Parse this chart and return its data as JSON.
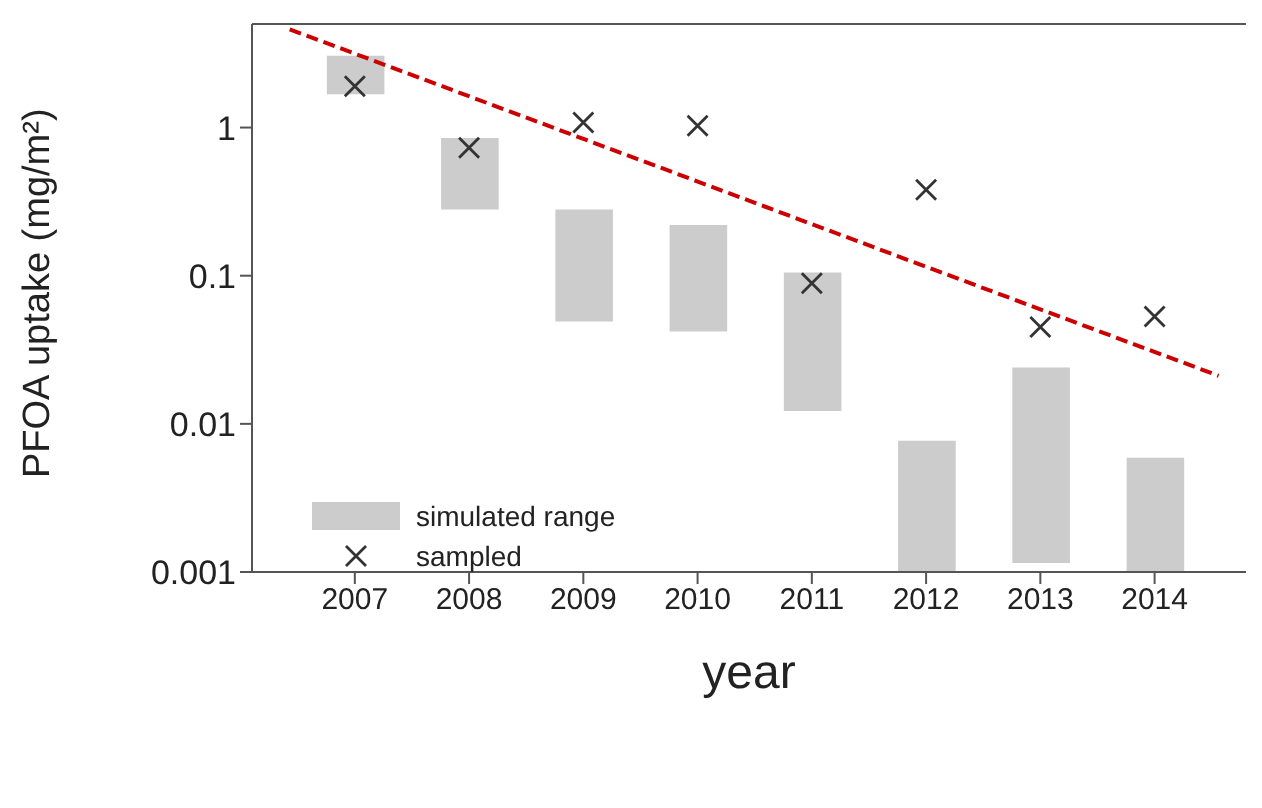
{
  "chart_data": {
    "type": "bar",
    "xlabel": "year",
    "ylabel": "PFOA uptake (mg/m²)",
    "x": [
      2007,
      2008,
      2009,
      2010,
      2011,
      2012,
      2013,
      2014
    ],
    "xlim": [
      2006.1,
      2014.8
    ],
    "xticks": [
      2007,
      2008,
      2009,
      2010,
      2011,
      2012,
      2013,
      2014
    ],
    "ylim": [
      0.001,
      5
    ],
    "yticks": [
      0.001,
      0.01,
      0.1,
      1
    ],
    "log": "y",
    "legend": "bottom left",
    "series": [
      {
        "name": "simulated range",
        "color": "#cccccc",
        "base": [
          1.68,
          0.28,
          0.049,
          0.042,
          0.0122,
          0.001,
          0.00115,
          0.001
        ],
        "values": [
          1.37,
          0.57,
          0.231,
          0.178,
          0.0928,
          0.0067,
          0.02285,
          0.0049
        ]
      },
      {
        "type": "scatter",
        "name": "sampled",
        "color": "#333333",
        "marker": "cross",
        "values": [
          1.9,
          0.73,
          1.08,
          1.03,
          0.089,
          0.38,
          0.045,
          0.053
        ]
      },
      {
        "type": "line",
        "color": "#cc0000",
        "line_style": "dashed",
        "x": [
          2006.43,
          2014.56
        ],
        "values": [
          4.6,
          0.0211
        ]
      }
    ]
  }
}
